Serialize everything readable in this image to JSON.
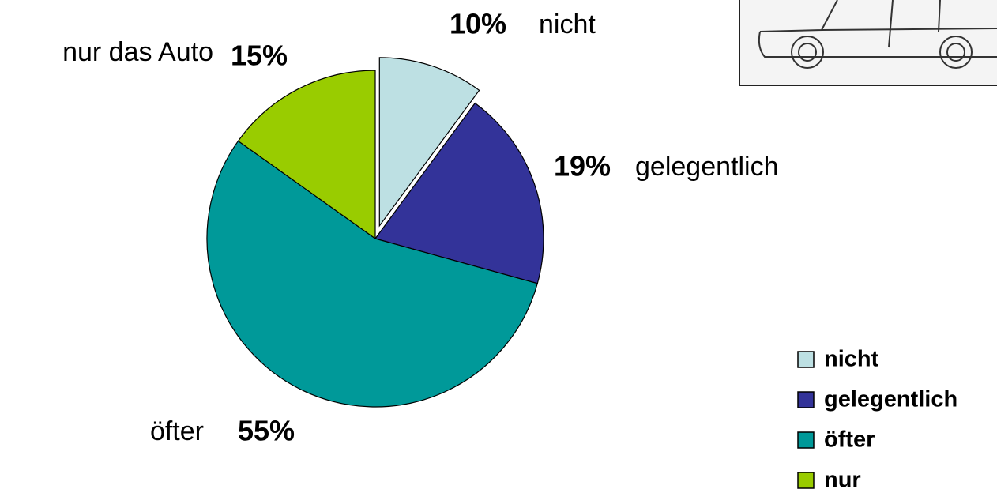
{
  "chart_data": {
    "type": "pie",
    "categories": [
      "nicht",
      "gelegentlich",
      "öfter",
      "nur"
    ],
    "slice_labels": [
      "nicht",
      "gelegentlich",
      "öfter",
      "nur das Auto"
    ],
    "values": [
      10,
      19,
      55,
      15
    ],
    "value_labels": [
      "10%",
      "19%",
      "55%",
      "15%"
    ],
    "colors": [
      "#bde0e3",
      "#333399",
      "#009999",
      "#99cc00"
    ],
    "exploded": [
      true,
      false,
      false,
      false
    ],
    "legend": "bottom-right"
  }
}
